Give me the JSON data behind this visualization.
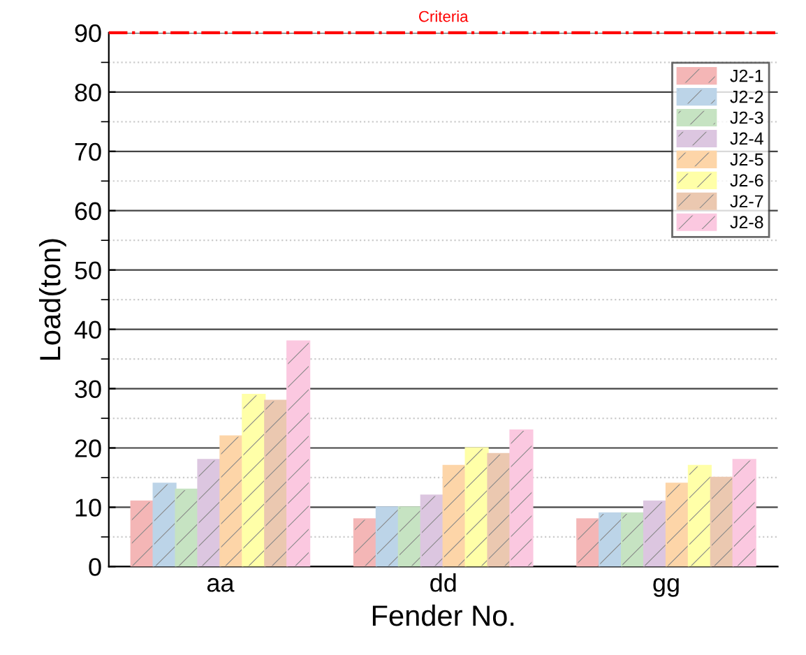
{
  "chart_data": {
    "type": "bar",
    "xlabel": "Fender No.",
    "ylabel": "Load(ton)",
    "categories": [
      "aa",
      "dd",
      "gg"
    ],
    "series": [
      {
        "name": "J2-1",
        "color": "#f4b6b6",
        "values": [
          11,
          8,
          8
        ]
      },
      {
        "name": "J2-2",
        "color": "#bcd4e8",
        "values": [
          14,
          10,
          9
        ]
      },
      {
        "name": "J2-3",
        "color": "#c6e3c2",
        "values": [
          13,
          10,
          9
        ]
      },
      {
        "name": "J2-4",
        "color": "#dcc6e0",
        "values": [
          18,
          12,
          11
        ]
      },
      {
        "name": "J2-5",
        "color": "#fdd5a8",
        "values": [
          22,
          17,
          14
        ]
      },
      {
        "name": "J2-6",
        "color": "#ffffa8",
        "values": [
          29,
          20,
          17
        ]
      },
      {
        "name": "J2-7",
        "color": "#ebc8b0",
        "values": [
          28,
          19,
          15
        ]
      },
      {
        "name": "J2-8",
        "color": "#fbc8e0",
        "values": [
          38,
          23,
          18
        ]
      }
    ],
    "ylim": [
      0,
      90
    ],
    "yticks": [
      0,
      10,
      20,
      30,
      40,
      50,
      60,
      70,
      80,
      90
    ],
    "grid": "y",
    "legend": "top right",
    "ref_lines": [
      {
        "axis": "y",
        "value": 90,
        "label": "Criteria",
        "color": "#ff0000",
        "line_style": "dashdot"
      }
    ]
  }
}
